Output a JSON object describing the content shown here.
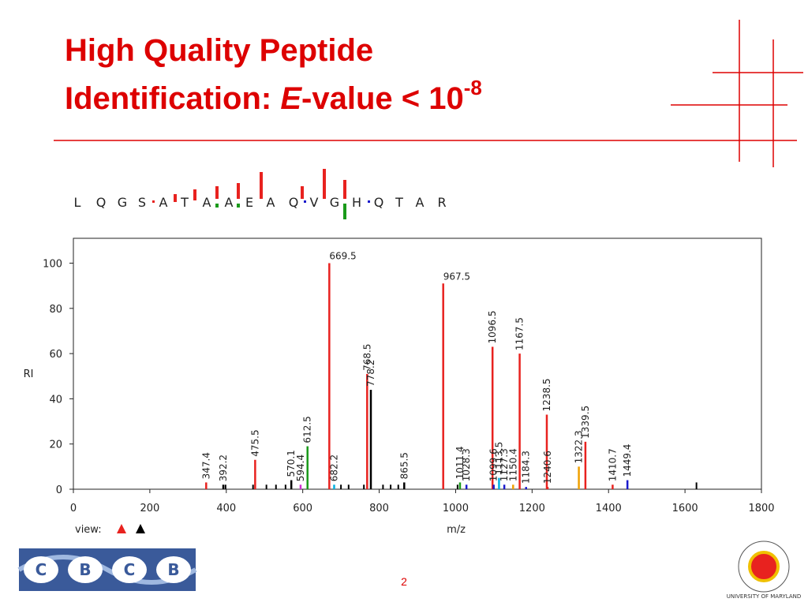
{
  "slide": {
    "title_line1": "High Quality Peptide",
    "title_prefix": "Identification: ",
    "title_italic": "E",
    "title_suffix": "-value < 10",
    "title_exponent": "-8",
    "page_number": "2",
    "logo_letters": [
      "C",
      "B",
      "C",
      "B"
    ],
    "seal_text": "UNIVERSITY OF MARYLAND",
    "view_label": "view:"
  },
  "sequence": [
    "L",
    "Q",
    "G",
    "S",
    "A",
    "T",
    "A",
    "A",
    "E",
    "A",
    "Q",
    "V",
    "G",
    "H",
    "Q",
    "T",
    "A",
    "R"
  ],
  "chart_data": {
    "type": "stem",
    "x_label": "m/z",
    "y_label": "RI",
    "x": [
      347.4,
      392.2,
      475.5,
      570.1,
      594.4,
      612.5,
      669.5,
      682.2,
      768.5,
      778.2,
      865.5,
      967.5,
      1011.4,
      1028.3,
      1096.5,
      1099.6,
      1113.5,
      1127.3,
      1150.4,
      1167.5,
      1184.3,
      1238.5,
      1240.6,
      1322.3,
      1339.5,
      1410.7,
      1449.4
    ],
    "values": [
      3,
      2,
      13,
      4,
      2,
      19,
      100,
      2,
      51,
      44,
      3,
      91,
      3,
      2,
      63,
      2,
      5,
      2,
      2,
      60,
      1,
      33,
      1,
      10,
      21,
      2,
      4
    ],
    "colors": [
      "#e8221f",
      "#000000",
      "#e8221f",
      "#000000",
      "#d02fd0",
      "#1a9a1a",
      "#e8221f",
      "#00b0e0",
      "#e8221f",
      "#000000",
      "#000000",
      "#e8221f",
      "#1a9a1a",
      "#1a1acc",
      "#e8221f",
      "#1a1acc",
      "#00b0e0",
      "#1a1acc",
      "#f0a000",
      "#e8221f",
      "#1a1acc",
      "#e8221f",
      "#e8221f",
      "#f0a000",
      "#e8221f",
      "#e8221f",
      "#1a1acc"
    ],
    "unlabeled_x": [
      398,
      470,
      505,
      530,
      555,
      700,
      720,
      760,
      810,
      830,
      850,
      1005,
      1630
    ],
    "unlabeled_values": [
      2,
      2,
      2,
      2,
      2,
      2,
      2,
      2,
      2,
      2,
      2,
      2,
      3
    ],
    "unlabeled_color": "#000000",
    "xlim": [
      0,
      1800
    ],
    "xticks": [
      0,
      200,
      400,
      600,
      800,
      1000,
      1200,
      1400,
      1600,
      1800
    ],
    "ylim": [
      0,
      111
    ],
    "yticks": [
      0,
      20,
      40,
      60,
      80,
      100
    ]
  }
}
